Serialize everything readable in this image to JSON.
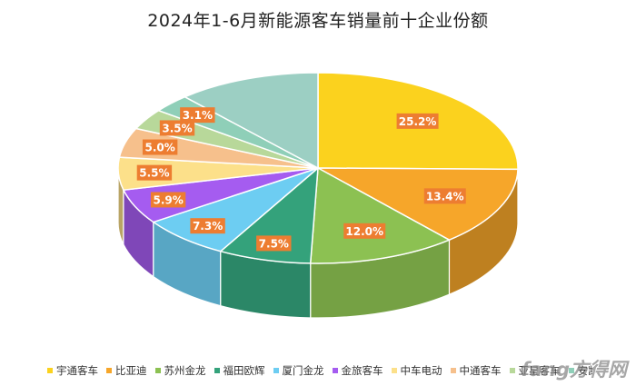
{
  "chart_data": {
    "type": "pie",
    "title": "2024年1-6月新能源客车销量前十企业份额",
    "slices": [
      {
        "label": "宇通客车",
        "value": 25.2,
        "display": "25.2%",
        "color": "#FBD21E"
      },
      {
        "label": "比亚迪",
        "value": 13.4,
        "display": "13.4%",
        "color": "#F6A62A"
      },
      {
        "label": "苏州金龙",
        "value": 12.0,
        "display": "12.0%",
        "color": "#8CC152"
      },
      {
        "label": "福田欧辉",
        "value": 7.5,
        "display": "7.5%",
        "color": "#34A27B"
      },
      {
        "label": "厦门金龙",
        "value": 7.3,
        "display": "7.3%",
        "color": "#6DCDF2"
      },
      {
        "label": "金旅客车",
        "value": 5.9,
        "display": "5.9%",
        "color": "#A55CF0"
      },
      {
        "label": "中车电动",
        "value": 5.5,
        "display": "5.5%",
        "color": "#FCE08A"
      },
      {
        "label": "中通客车",
        "value": 5.0,
        "display": "5.0%",
        "color": "#F6C08C"
      },
      {
        "label": "亚星客车",
        "value": 3.5,
        "display": "3.5%",
        "color": "#B8D89A"
      },
      {
        "label": "安凯客车",
        "value": 3.1,
        "display": "3.1%",
        "color": "#8FCFB8"
      }
    ],
    "other_share": 11.6,
    "data_label_bg": "#ED7D31",
    "legend_position": "bottom"
  },
  "watermark": "fang方得网"
}
